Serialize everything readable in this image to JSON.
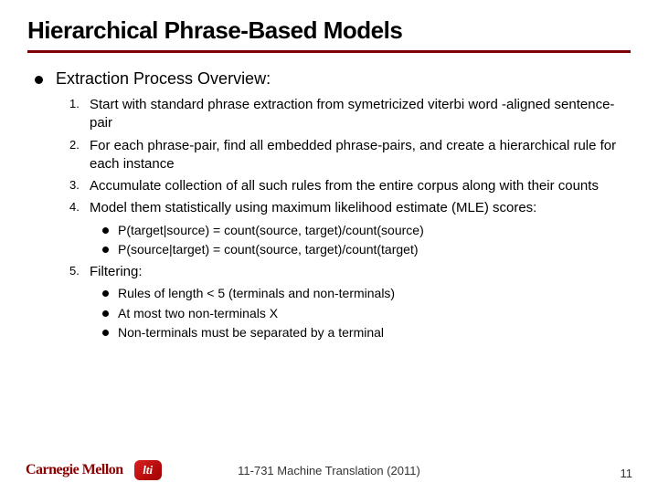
{
  "title": "Hierarchical Phrase-Based Models",
  "accent_color": "#800000",
  "top_bullet": "Extraction Process Overview:",
  "items": [
    {
      "n": "1.",
      "text": "Start with standard phrase extraction from symetricized viterbi word -aligned sentence-pair"
    },
    {
      "n": "2.",
      "text": "For each phrase-pair, find all embedded phrase-pairs, and create a hierarchical rule for each instance"
    },
    {
      "n": "3.",
      "text": "Accumulate collection of all such rules from the entire corpus along with their counts"
    },
    {
      "n": "4.",
      "text": "Model them statistically using maximum likelihood estimate (MLE) scores:"
    }
  ],
  "mle": [
    "P(target|source) = count(source, target)/count(source)",
    "P(source|target) = count(source, target)/count(target)"
  ],
  "item5": {
    "n": "5.",
    "text": "Filtering:"
  },
  "filter": [
    "Rules of length < 5 (terminals and non-terminals)",
    "At most two non-terminals X",
    "Non-terminals must be separated by a terminal"
  ],
  "footer": {
    "cm": "Carnegie Mellon",
    "lti": "lti",
    "center": "11-731 Machine Translation (2011)",
    "page": "11"
  }
}
